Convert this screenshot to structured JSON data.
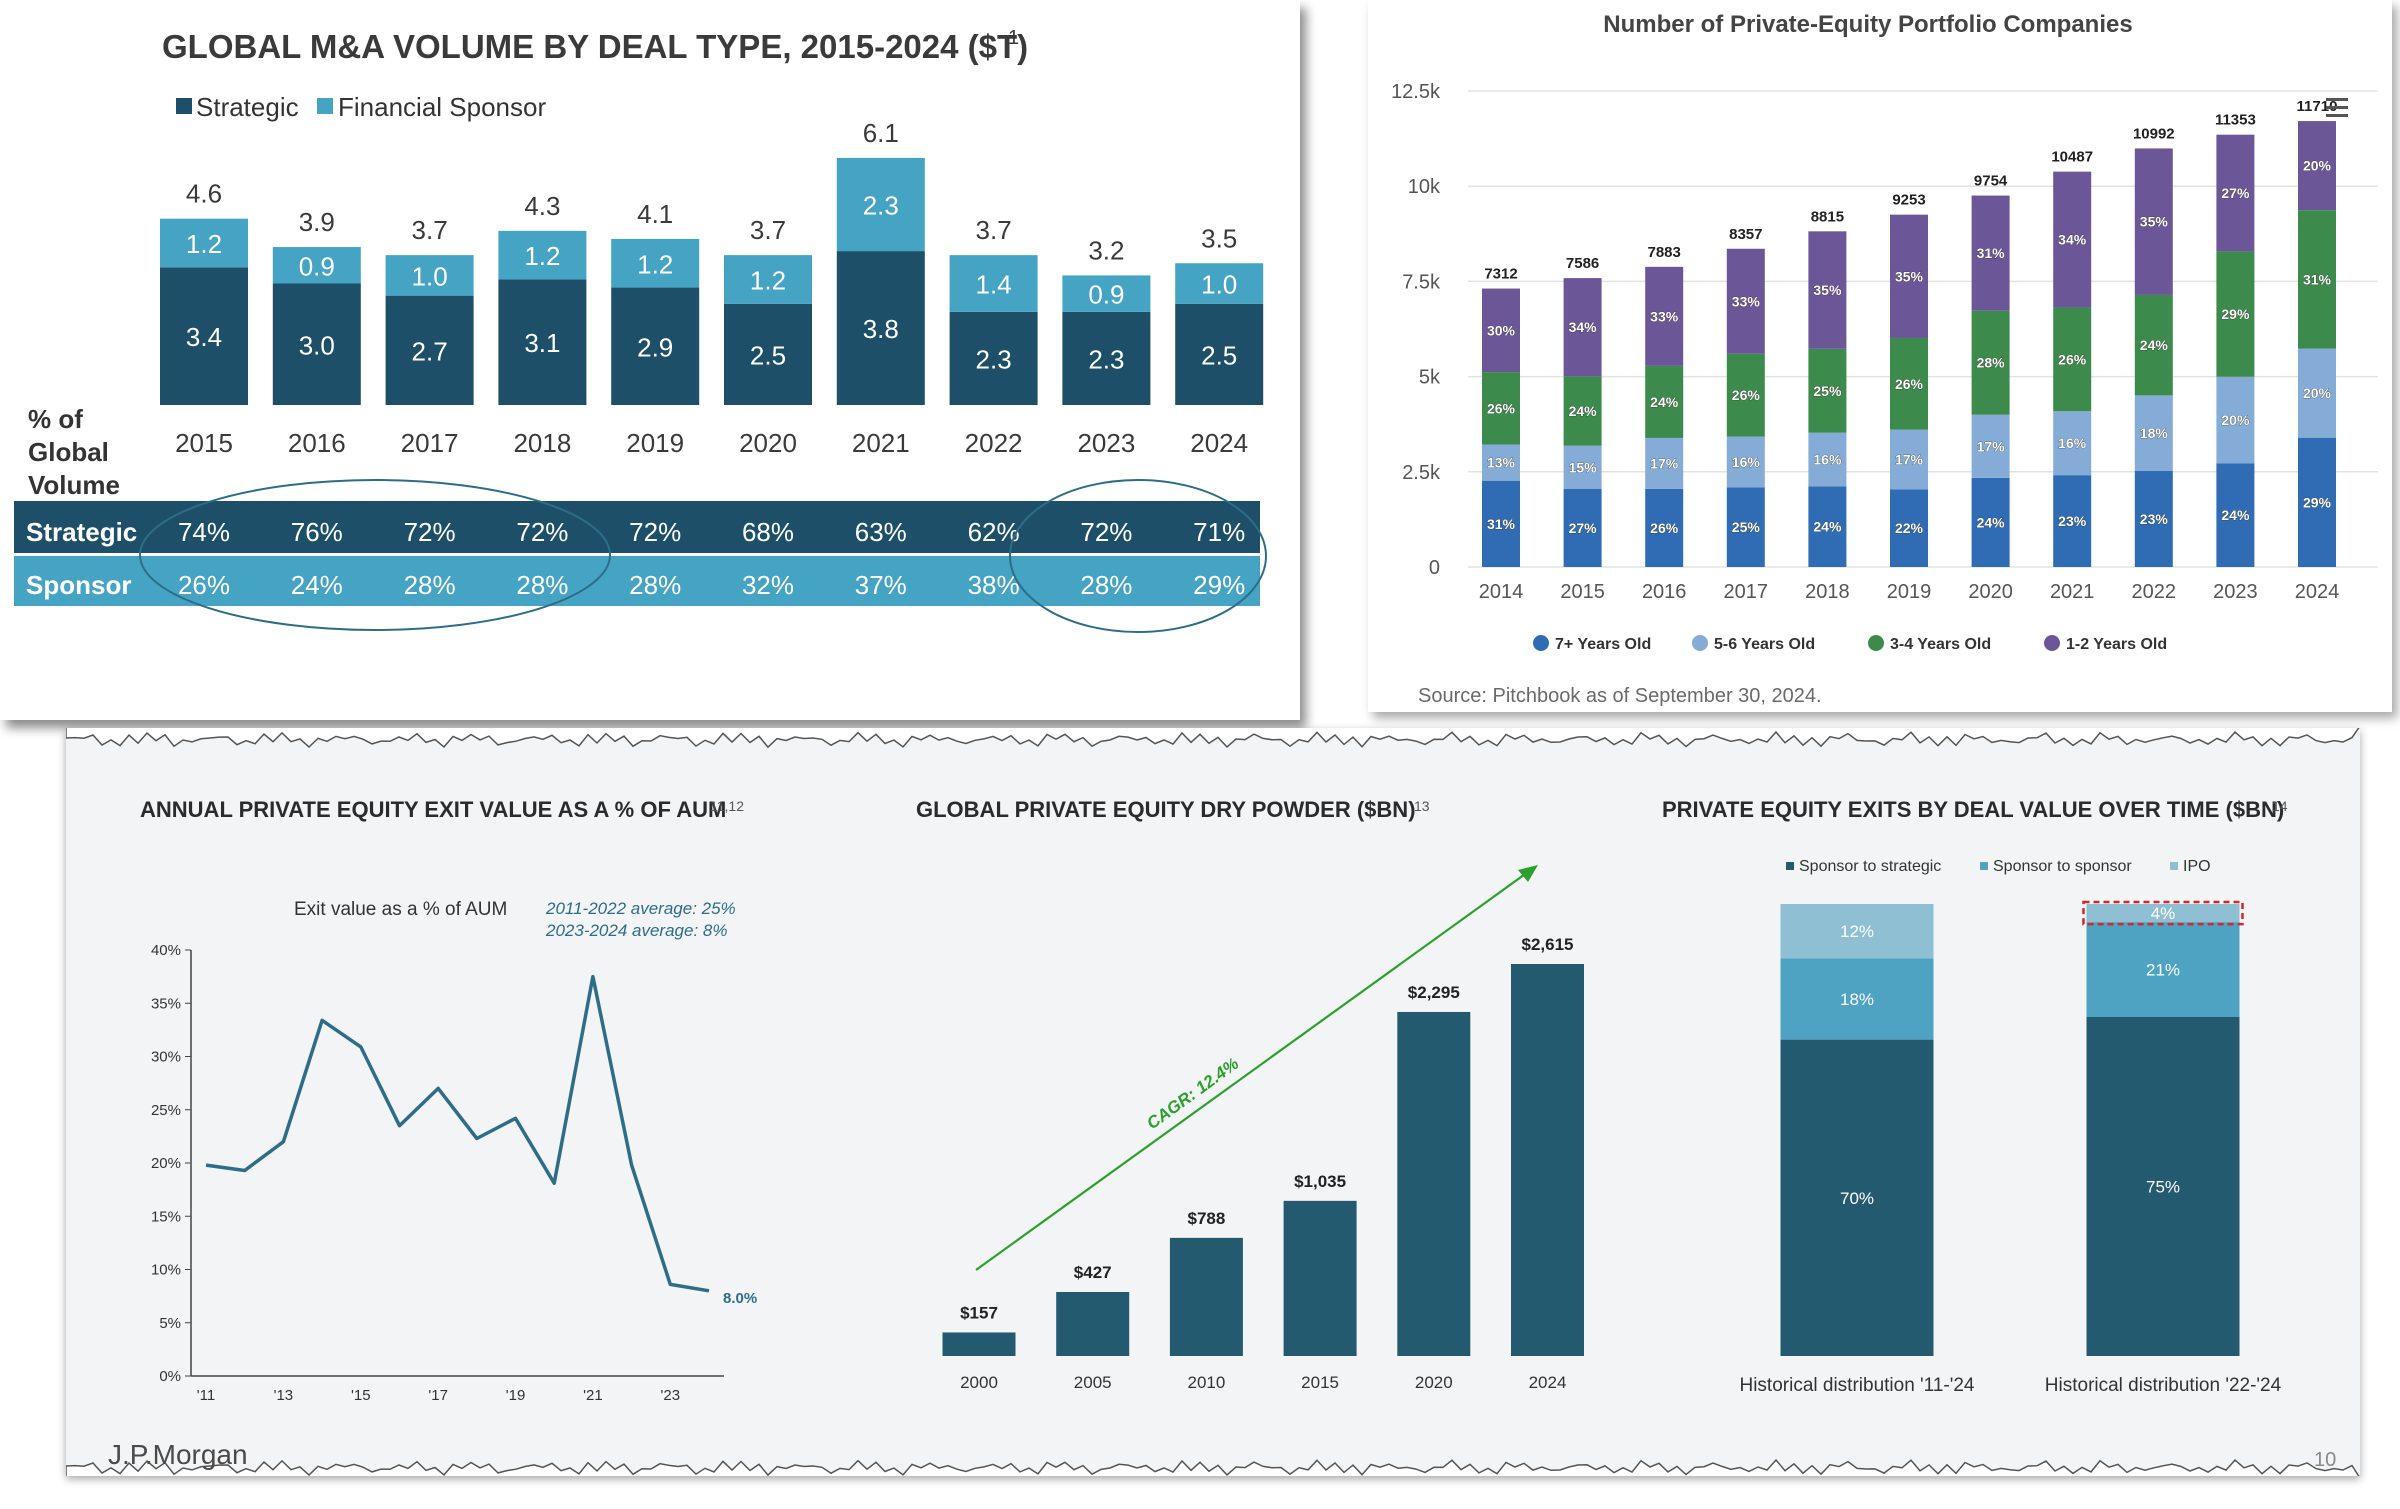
{
  "colors": {
    "strategic": "#1d5068",
    "sponsor": "#45a3c4",
    "pe_7plus": "#2f6cb3",
    "pe_56": "#85acd6",
    "pe_34": "#3d8a4d",
    "pe_12": "#6b5698",
    "dark_bar": "#245a70",
    "line": "#2e6d87",
    "green_arrow": "#2ca02c",
    "jp_strategic": "#245a70",
    "jp_s2s": "#4ea3c2",
    "jp_ipo": "#8fbfd2"
  },
  "chart_data": [
    {
      "type": "bar",
      "title": "GLOBAL M&A VOLUME BY DEAL TYPE, 2015-2024 ($T)",
      "title_sup": "1",
      "legend": [
        "Strategic",
        "Financial Sponsor"
      ],
      "categories": [
        "2015",
        "2016",
        "2017",
        "2018",
        "2019",
        "2020",
        "2021",
        "2022",
        "2023",
        "2024"
      ],
      "series": [
        {
          "name": "Strategic",
          "values": [
            3.4,
            3.0,
            2.7,
            3.1,
            2.9,
            2.5,
            3.8,
            2.3,
            2.3,
            2.5
          ],
          "labels": [
            "3.4",
            "3.0",
            "2.7",
            "3.1",
            "2.9",
            "2.5",
            "3.8",
            "2.3",
            "2.3",
            "2.5"
          ]
        },
        {
          "name": "Financial Sponsor",
          "values": [
            1.2,
            0.9,
            1.0,
            1.2,
            1.2,
            1.2,
            2.3,
            1.4,
            0.9,
            1.0
          ],
          "labels": [
            "1.2",
            "0.9",
            "1.0",
            "1.2",
            "1.2",
            "1.2",
            "2.3",
            "1.4",
            "0.9",
            "1.0"
          ]
        }
      ],
      "totals": [
        "4.6",
        "3.9",
        "3.7",
        "4.3",
        "4.1",
        "3.7",
        "6.1",
        "3.7",
        "3.2",
        "3.5"
      ],
      "table": {
        "header": [
          "% of",
          "Global",
          "Volume"
        ],
        "rows": [
          {
            "label": "Strategic",
            "values": [
              "74%",
              "76%",
              "72%",
              "72%",
              "72%",
              "68%",
              "63%",
              "62%",
              "72%",
              "71%"
            ]
          },
          {
            "label": "Sponsor",
            "values": [
              "26%",
              "24%",
              "28%",
              "28%",
              "28%",
              "32%",
              "37%",
              "38%",
              "28%",
              "29%"
            ]
          }
        ]
      }
    },
    {
      "type": "bar",
      "title": "Number of Private-Equity Portfolio Companies",
      "categories": [
        "2014",
        "2015",
        "2016",
        "2017",
        "2018",
        "2019",
        "2020",
        "2021",
        "2022",
        "2023",
        "2024"
      ],
      "totals": [
        7312,
        7586,
        7883,
        8357,
        8815,
        9253,
        9754,
        10487,
        10992,
        11353,
        11710
      ],
      "ylim": [
        0,
        12500
      ],
      "yticks": [
        "0",
        "2.5k",
        "5k",
        "7.5k",
        "10k",
        "12.5k"
      ],
      "series": [
        {
          "name": "7+ Years Old",
          "values": [
            31,
            27,
            26,
            25,
            24,
            22,
            24,
            23,
            23,
            24,
            29
          ]
        },
        {
          "name": "5-6 Years Old",
          "values": [
            13,
            15,
            17,
            16,
            16,
            17,
            17,
            16,
            18,
            20,
            20
          ]
        },
        {
          "name": "3-4 Years Old",
          "values": [
            26,
            24,
            24,
            26,
            25,
            26,
            28,
            26,
            24,
            29,
            31
          ]
        },
        {
          "name": "1-2 Years Old",
          "values": [
            30,
            34,
            33,
            33,
            35,
            35,
            31,
            34,
            35,
            27,
            20
          ]
        }
      ],
      "unit": "%",
      "source": "Source: Pitchbook as of September 30, 2024.",
      "grid": true,
      "legend_placement": "bottom"
    },
    {
      "type": "line",
      "title": "ANNUAL PRIVATE EQUITY EXIT VALUE AS A % OF AUM",
      "title_sup": "11,12",
      "series_label": "Exit value as a % of AUM",
      "notes": [
        "2011-2022 average: 25%",
        "2023-2024 average: 8%"
      ],
      "x": [
        2011,
        2012,
        2013,
        2014,
        2015,
        2016,
        2017,
        2018,
        2019,
        2020,
        2021,
        2022,
        2023,
        2024
      ],
      "y": [
        19.8,
        19.3,
        22,
        33.4,
        30.9,
        23.5,
        27,
        22.3,
        24.2,
        18.1,
        37.5,
        19.8,
        8.6,
        8.0
      ],
      "xticks": [
        "'11",
        "'13",
        "'15",
        "'17",
        "'19",
        "'21",
        "'23"
      ],
      "yticks": [
        "0%",
        "5%",
        "10%",
        "15%",
        "20%",
        "25%",
        "30%",
        "35%",
        "40%"
      ],
      "ylim": [
        0,
        40
      ],
      "end_label": "8.0%"
    },
    {
      "type": "bar",
      "title": "GLOBAL PRIVATE EQUITY DRY POWDER ($BN)",
      "title_sup": "13",
      "categories": [
        "2000",
        "2005",
        "2010",
        "2015",
        "2020",
        "2024"
      ],
      "values": [
        157,
        427,
        788,
        1035,
        2295,
        2615
      ],
      "labels": [
        "$157",
        "$427",
        "$788",
        "$1,035",
        "$2,295",
        "$2,615"
      ],
      "annotation": "CAGR: 12.4%"
    },
    {
      "type": "bar",
      "title": "PRIVATE EQUITY EXITS BY DEAL VALUE OVER TIME ($BN)",
      "title_sup": "14",
      "legend": [
        "Sponsor to strategic",
        "Sponsor to sponsor",
        "IPO"
      ],
      "categories": [
        "Historical distribution '11-'24",
        "Historical distribution '22-'24"
      ],
      "series": [
        {
          "name": "Sponsor to strategic",
          "values": [
            70,
            75
          ]
        },
        {
          "name": "Sponsor to sponsor",
          "values": [
            18,
            21
          ]
        },
        {
          "name": "IPO",
          "values": [
            12,
            4
          ]
        }
      ],
      "unit": "%"
    }
  ],
  "footer": {
    "logo": "J.P.Morgan",
    "page": "10"
  }
}
